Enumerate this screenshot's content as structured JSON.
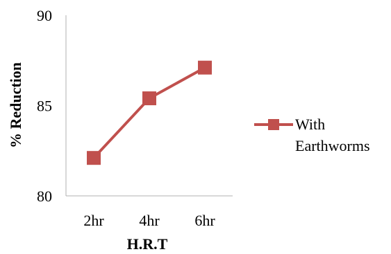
{
  "chart_data": {
    "type": "line",
    "categories": [
      "2hr",
      "4hr",
      "6hr"
    ],
    "series": [
      {
        "name": "With Earthworms",
        "values": [
          82.1,
          85.4,
          87.1
        ],
        "color": "#c0504d",
        "marker": "square"
      }
    ],
    "xlabel": "H.R.T",
    "ylabel": "% Reduction",
    "ylim": [
      80,
      90
    ],
    "yticks": [
      "80",
      "85",
      "90"
    ],
    "grid": false,
    "legend_position": "right"
  },
  "legend": {
    "line1": "With",
    "line2": "Earthworms"
  }
}
